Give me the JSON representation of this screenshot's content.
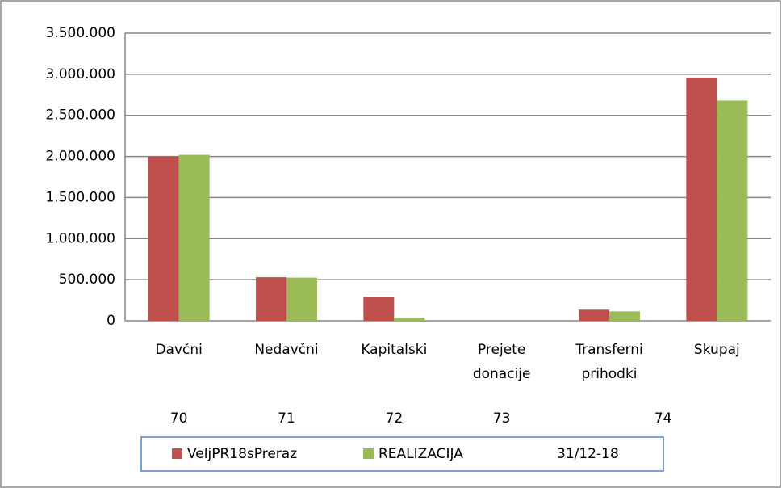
{
  "chart_data": {
    "type": "bar",
    "categories": [
      [
        "Davčni"
      ],
      [
        "Nedavčni"
      ],
      [
        "Kapitalski"
      ],
      [
        "Prejete",
        "donacije"
      ],
      [
        "Transferni",
        "prihodki"
      ],
      [
        "Skupaj"
      ]
    ],
    "category_groups": [
      {
        "label": "70",
        "categories": [
          0
        ]
      },
      {
        "label": "71",
        "categories": [
          1
        ]
      },
      {
        "label": "72",
        "categories": [
          2
        ]
      },
      {
        "label": "73",
        "categories": [
          3
        ]
      },
      {
        "label": "74",
        "categories": [
          4,
          5
        ]
      }
    ],
    "series": [
      {
        "name": "VeljPR18sPreraz",
        "color": "#c0504d",
        "values": [
          2000000,
          530000,
          290000,
          0,
          135000,
          2960000
        ]
      },
      {
        "name": "REALIZACIJA",
        "color": "#9bbb59",
        "values": [
          2020000,
          525000,
          40000,
          0,
          115000,
          2680000
        ]
      }
    ],
    "legend_note": "31/12-18",
    "ylim": [
      0,
      3500000
    ],
    "yticks": [
      0,
      {
        "value": 500000,
        "label": "500.000"
      },
      {
        "value": 1000000,
        "label": "1.000.000"
      },
      {
        "value": 1500000,
        "label": "1.500.000"
      },
      {
        "value": 2000000,
        "label": "2.000.000"
      },
      {
        "value": 2500000,
        "label": "2.500.000"
      },
      {
        "value": 3000000,
        "label": "3.000.000"
      },
      {
        "value": 3500000,
        "label": "3.500.000"
      }
    ],
    "grid": true
  }
}
